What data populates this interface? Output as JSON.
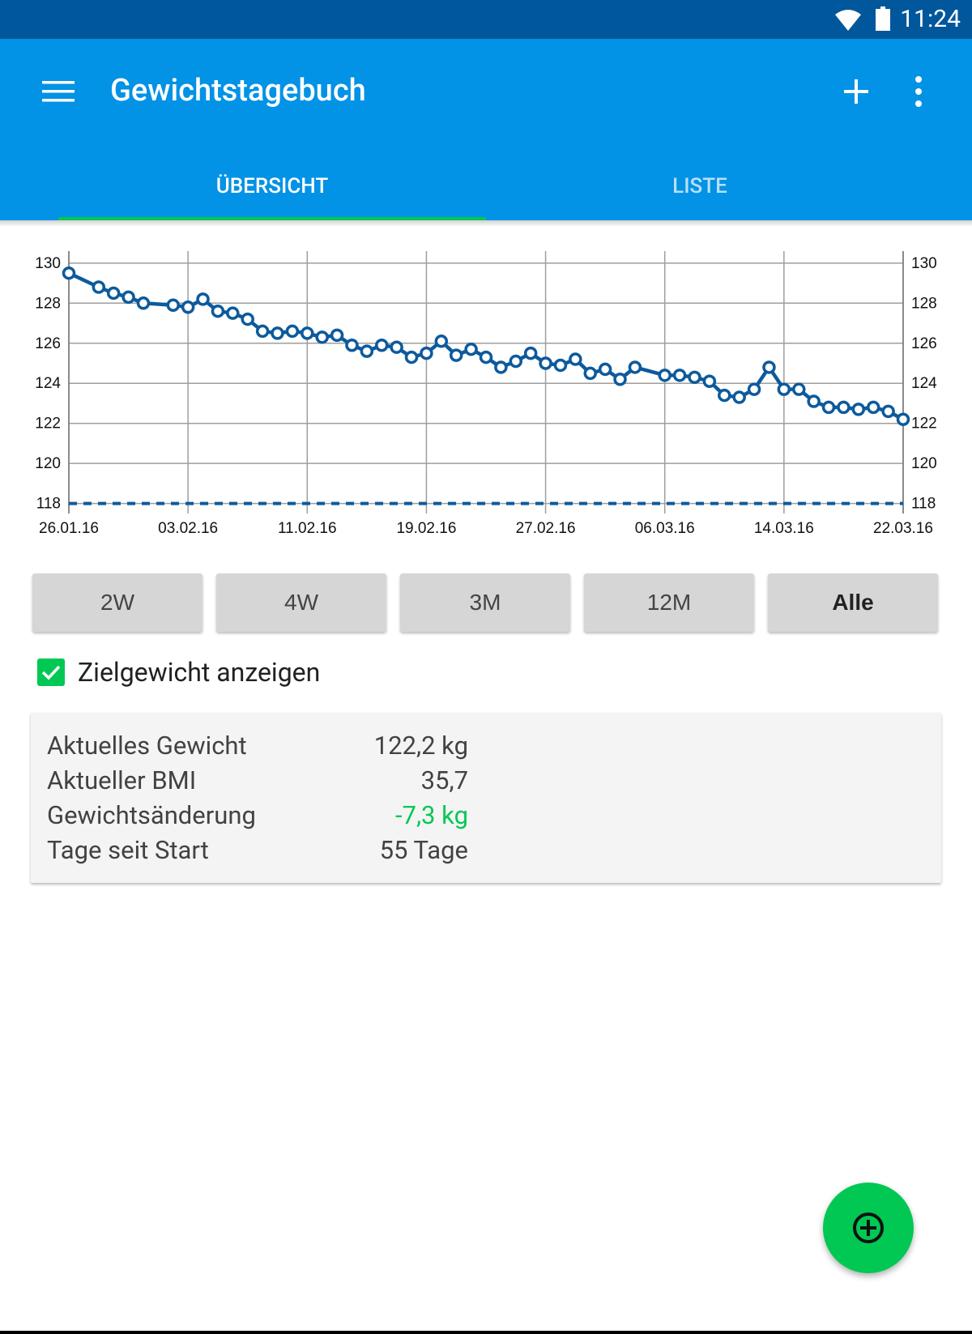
{
  "status_bar": {
    "time": "11:24",
    "icons": [
      "wifi-icon",
      "battery-icon"
    ]
  },
  "app_bar": {
    "title": "Gewichtstagebuch",
    "actions": [
      "menu-icon",
      "add-icon",
      "more-vert-icon"
    ]
  },
  "tabs": [
    {
      "label": "ÜBERSICHT",
      "selected": true
    },
    {
      "label": "LISTE",
      "selected": false
    }
  ],
  "colors": {
    "status_bar": "#01579b",
    "app_bar": "#0292e6",
    "accent": "#00c853",
    "series_line": "#0d5a9c",
    "positive_change": "#00c853"
  },
  "chart_data": {
    "type": "line",
    "title": "",
    "xlabel": "",
    "ylabel": "",
    "x_tick_labels": [
      "26.01.16",
      "03.02.16",
      "11.02.16",
      "19.02.16",
      "27.02.16",
      "06.03.16",
      "14.03.16",
      "22.03.16"
    ],
    "y_ticks": [
      118,
      120,
      122,
      124,
      126,
      128,
      130
    ],
    "ylim": [
      117.5,
      130.6
    ],
    "xlim": [
      "26.01.16",
      "22.03.16"
    ],
    "y_axis_both_sides": true,
    "grid": true,
    "series": [
      {
        "x": [
          "26.01.16",
          "28.01.16",
          "29.01.16",
          "30.01.16",
          "31.01.16",
          "02.02.16",
          "03.02.16",
          "04.02.16",
          "05.02.16",
          "06.02.16",
          "07.02.16",
          "08.02.16",
          "09.02.16",
          "10.02.16",
          "11.02.16",
          "12.02.16",
          "13.02.16",
          "14.02.16",
          "15.02.16",
          "16.02.16",
          "17.02.16",
          "18.02.16",
          "19.02.16",
          "20.02.16",
          "21.02.16",
          "22.02.16",
          "23.02.16",
          "24.02.16",
          "25.02.16",
          "26.02.16",
          "27.02.16",
          "28.02.16",
          "29.02.16",
          "01.03.16",
          "02.03.16",
          "03.03.16",
          "04.03.16",
          "06.03.16",
          "07.03.16",
          "08.03.16",
          "09.03.16",
          "10.03.16",
          "11.03.16",
          "12.03.16",
          "13.03.16",
          "14.03.16",
          "15.03.16",
          "16.03.16",
          "17.03.16",
          "18.03.16",
          "19.03.16",
          "20.03.16",
          "21.03.16",
          "22.03.16"
        ],
        "y": [
          129.5,
          128.8,
          128.5,
          128.3,
          128.0,
          127.9,
          127.8,
          128.2,
          127.6,
          127.5,
          127.2,
          126.6,
          126.5,
          126.6,
          126.5,
          126.3,
          126.4,
          125.9,
          125.6,
          125.9,
          125.8,
          125.3,
          125.5,
          126.1,
          125.4,
          125.7,
          125.3,
          124.8,
          125.1,
          125.5,
          125.0,
          124.9,
          125.2,
          124.5,
          124.7,
          124.2,
          124.8,
          124.4,
          124.4,
          124.3,
          124.1,
          123.4,
          123.3,
          123.7,
          124.8,
          123.7,
          123.7,
          123.1,
          122.8,
          122.8,
          122.7,
          122.8,
          122.6,
          122.2
        ]
      },
      {
        "y_constant": 118,
        "style": "dashed"
      }
    ]
  },
  "range_buttons": [
    {
      "label": "2W",
      "active": false
    },
    {
      "label": "4W",
      "active": false
    },
    {
      "label": "3M",
      "active": false
    },
    {
      "label": "12M",
      "active": false
    },
    {
      "label": "Alle",
      "active": true
    }
  ],
  "target_checkbox": {
    "label": "Zielgewicht anzeigen",
    "checked": true
  },
  "stats": [
    {
      "label": "Aktuelles Gewicht",
      "value": "122,2 kg"
    },
    {
      "label": "Aktueller BMI",
      "value": "35,7"
    },
    {
      "label": "Gewichtsänderung",
      "value": "-7,3 kg",
      "highlight": true
    },
    {
      "label": "Tage seit Start",
      "value": "55 Tage"
    }
  ],
  "fab": {
    "icon": "add-circle-icon"
  }
}
